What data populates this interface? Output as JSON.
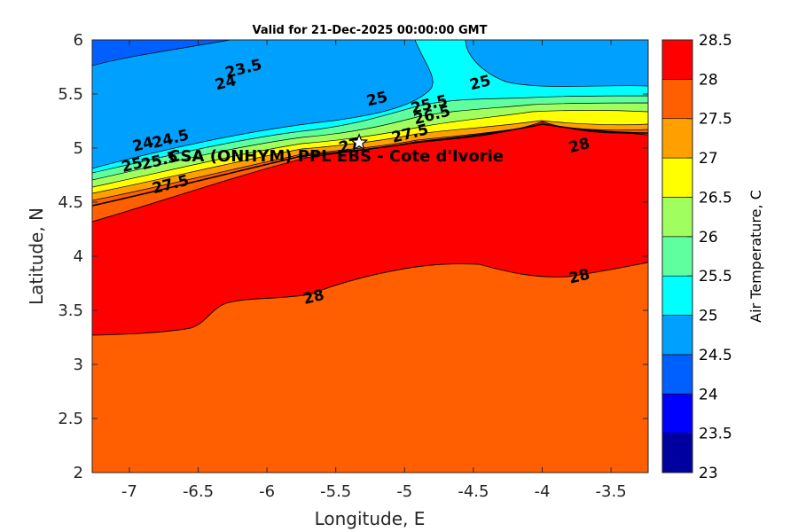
{
  "chart_data": {
    "type": "contour",
    "title": "Valid for 21-Dec-2025 00:00:00 GMT",
    "xlabel": "Longitude, E",
    "ylabel": "Latitude, N",
    "xlim": [
      -7.27,
      -3.23
    ],
    "ylim": [
      2,
      6
    ],
    "xticks": [
      -7,
      -6.5,
      -6,
      -5.5,
      -5,
      -4.5,
      -4,
      -3.5
    ],
    "xtick_labels": [
      "-7",
      "-6.5",
      "-6",
      "-5.5",
      "-5",
      "-4.5",
      "-4",
      "-3.5"
    ],
    "yticks": [
      2,
      2.5,
      3,
      3.5,
      4,
      4.5,
      5,
      5.5,
      6
    ],
    "ytick_labels": [
      "2",
      "2.5",
      "3",
      "3.5",
      "4",
      "4.5",
      "5",
      "5.5",
      "6"
    ],
    "colorbar": {
      "label": "Air Temperature, C",
      "min": 23,
      "max": 28.5,
      "levels": [
        23,
        23.5,
        24,
        24.5,
        25,
        25.5,
        26,
        26.5,
        27,
        27.5,
        28,
        28.5
      ],
      "tick_labels": [
        "23",
        "23.5",
        "24",
        "24.5",
        "25",
        "25.5",
        "26",
        "26.5",
        "27",
        "27.5",
        "28",
        "28.5"
      ],
      "colors": [
        "#00009f",
        "#0000ff",
        "#005fff",
        "#00a0ff",
        "#00ffff",
        "#5fff9f",
        "#a0ff5f",
        "#ffff00",
        "#ffa000",
        "#ff5f00",
        "#ff0000"
      ]
    },
    "contour_labels": [
      {
        "text": "23.5",
        "x": -6.17,
        "y": 5.73
      },
      {
        "text": "24",
        "x": -6.3,
        "y": 5.6
      },
      {
        "text": "24",
        "x": -6.9,
        "y": 5.03
      },
      {
        "text": "24.5",
        "x": -6.7,
        "y": 5.08
      },
      {
        "text": "25",
        "x": -6.98,
        "y": 4.84
      },
      {
        "text": "25",
        "x": -5.2,
        "y": 5.45
      },
      {
        "text": "25",
        "x": -4.45,
        "y": 5.6
      },
      {
        "text": "25.5",
        "x": -4.82,
        "y": 5.4
      },
      {
        "text": "25.5",
        "x": -6.78,
        "y": 4.88
      },
      {
        "text": "26.5",
        "x": -4.8,
        "y": 5.3
      },
      {
        "text": "27.5",
        "x": -4.96,
        "y": 5.13
      },
      {
        "text": "27.5",
        "x": -6.7,
        "y": 4.66
      },
      {
        "text": "27",
        "x": -5.4,
        "y": 5.02
      },
      {
        "text": "28",
        "x": -3.73,
        "y": 5.02
      },
      {
        "text": "28",
        "x": -3.73,
        "y": 3.81
      },
      {
        "text": "28",
        "x": -5.66,
        "y": 3.62
      }
    ],
    "site": {
      "name": "CSA (ONHYM) PPL EBS  - Cote d'Ivorie",
      "lon": -5.33,
      "lat": 5.05
    }
  }
}
